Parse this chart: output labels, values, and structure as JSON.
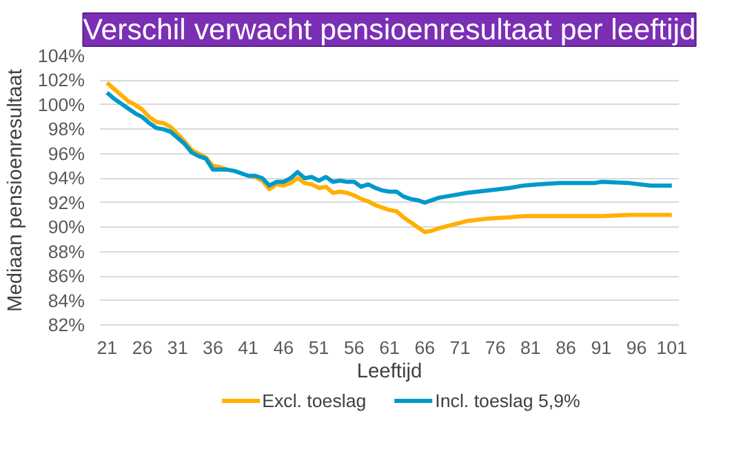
{
  "chart_data": {
    "type": "line",
    "title": "Verschil verwacht pensioenresultaat per leeftijd",
    "xlabel": "Leeftijd",
    "ylabel": "Mediaan pensioenresultaat",
    "x": [
      21,
      22,
      23,
      24,
      25,
      26,
      27,
      28,
      29,
      30,
      31,
      32,
      33,
      34,
      35,
      36,
      37,
      38,
      39,
      40,
      41,
      42,
      43,
      44,
      45,
      46,
      47,
      48,
      49,
      50,
      51,
      52,
      53,
      54,
      55,
      56,
      57,
      58,
      59,
      60,
      61,
      62,
      63,
      64,
      65,
      66,
      67,
      68,
      70,
      72,
      75,
      78,
      80,
      82,
      85,
      90,
      91,
      95,
      98,
      101
    ],
    "series": [
      {
        "name": "Excl. toeslag",
        "color": "#ffb000",
        "values": [
          101.8,
          101.3,
          100.8,
          100.3,
          100.0,
          99.6,
          99.0,
          98.6,
          98.5,
          98.2,
          97.6,
          97.0,
          96.3,
          96.0,
          95.7,
          95.0,
          94.9,
          94.7,
          null,
          null,
          94.2,
          94.1,
          93.8,
          93.1,
          93.5,
          93.4,
          93.6,
          94.0,
          93.6,
          93.5,
          93.2,
          93.3,
          92.8,
          92.9,
          92.8,
          92.6,
          92.3,
          92.1,
          91.8,
          91.6,
          91.4,
          91.3,
          90.8,
          90.4,
          90.0,
          89.6,
          89.7,
          89.9,
          90.2,
          90.5,
          90.7,
          90.8,
          90.9,
          90.9,
          90.9,
          90.9,
          90.9,
          91.0,
          91.0,
          91.0
        ]
      },
      {
        "name": "Incl. toeslag 5,9%",
        "color": "#0099cc",
        "values": [
          101.0,
          100.5,
          100.1,
          99.7,
          99.3,
          99.0,
          98.5,
          98.1,
          98.0,
          97.8,
          97.3,
          96.8,
          96.1,
          95.8,
          95.6,
          94.7,
          94.7,
          94.7,
          94.6,
          94.4,
          94.2,
          94.2,
          94.0,
          93.4,
          93.7,
          93.7,
          94.0,
          94.5,
          94.0,
          94.1,
          93.8,
          94.1,
          93.7,
          93.8,
          93.7,
          93.7,
          93.3,
          93.5,
          93.2,
          93.0,
          92.9,
          92.9,
          92.5,
          92.3,
          92.2,
          92.0,
          92.2,
          92.4,
          92.6,
          92.8,
          93.0,
          93.2,
          93.4,
          93.5,
          93.6,
          93.6,
          93.7,
          93.6,
          93.4,
          93.4
        ]
      }
    ],
    "xlim": [
      20,
      102
    ],
    "xticks": [
      21,
      26,
      31,
      36,
      41,
      46,
      51,
      56,
      61,
      66,
      71,
      76,
      81,
      86,
      91,
      96,
      101
    ],
    "ylim": [
      82,
      104
    ],
    "yticks": [
      {
        "value": 82,
        "label": "82%"
      },
      {
        "value": 84,
        "label": "84%"
      },
      {
        "value": 86,
        "label": "86%"
      },
      {
        "value": 88,
        "label": "88%"
      },
      {
        "value": 90,
        "label": "90%"
      },
      {
        "value": 92,
        "label": "92%"
      },
      {
        "value": 94,
        "label": "94%"
      },
      {
        "value": 96,
        "label": "96%"
      },
      {
        "value": 98,
        "label": "98%"
      },
      {
        "value": 100,
        "label": "100%"
      },
      {
        "value": 102,
        "label": "102%"
      },
      {
        "value": 104,
        "label": "104%"
      }
    ],
    "grid": "y",
    "legend": "bottom",
    "marker": "none",
    "line_style": "solid"
  }
}
